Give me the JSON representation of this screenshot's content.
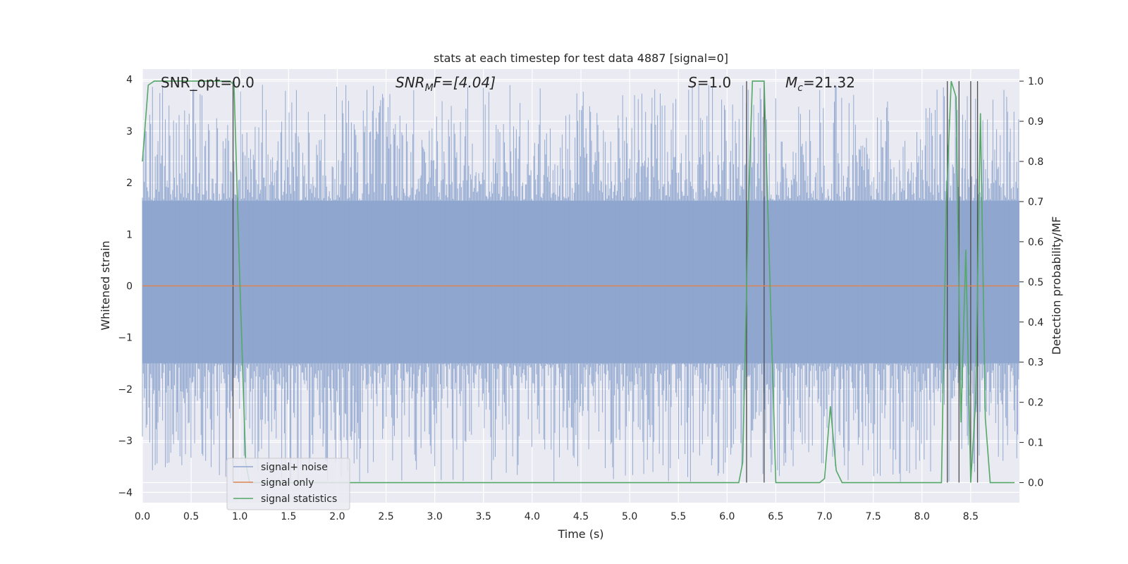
{
  "chart_data": {
    "type": "line",
    "title": "stats at each timestep for test data 4887 [signal=0]",
    "xlabel": "Time (s)",
    "ylabel": "Whitened strain",
    "ylabel_right": "Detection probability/MF",
    "xlim": [
      0.0,
      9.0
    ],
    "ylim": [
      -4.2,
      4.2
    ],
    "ylim_right": [
      -0.05,
      1.03
    ],
    "x_ticks": [
      "0.0",
      "0.5",
      "1.0",
      "1.5",
      "2.0",
      "2.5",
      "3.0",
      "3.5",
      "4.0",
      "4.5",
      "5.0",
      "5.5",
      "6.0",
      "6.5",
      "7.0",
      "7.5",
      "8.0",
      "8.5"
    ],
    "y_ticks": [
      "4",
      "3",
      "2",
      "1",
      "0",
      "−1",
      "−2",
      "−3",
      "−4"
    ],
    "y_right_ticks": [
      "1.0",
      "0.9",
      "0.8",
      "0.7",
      "0.6",
      "0.5",
      "0.4",
      "0.3",
      "0.2",
      "0.1",
      "0.0"
    ],
    "grid": true,
    "legend_position": "lower-left",
    "annotations": {
      "snr_opt": "SNR_opt=0.0",
      "snr_mf_base": "SNR",
      "snr_mf_sub": "M",
      "snr_mf_rest": "F=[4.04]",
      "s_italic": "S",
      "s_rest": "=1.0",
      "mc_base": "M",
      "mc_sub": "c",
      "mc_rest": "=21.32"
    },
    "series": [
      {
        "name": "signal+ noise",
        "color": "#8fa6cf",
        "description_role": "whitened strain noise trace",
        "amplitude_band": [
          -1.5,
          1.65
        ],
        "peak_max": 3.9,
        "peak_min": -3.8
      },
      {
        "name": "signal only",
        "color": "#dd8452",
        "x": [
          0.0,
          9.0
        ],
        "y": [
          0.0,
          0.0
        ]
      },
      {
        "name": "signal statistics",
        "color": "#55a868",
        "axis": "right",
        "x": [
          0.0,
          0.06,
          0.12,
          0.9,
          0.94,
          1.0,
          1.06,
          1.1,
          2.0,
          3.0,
          4.0,
          5.0,
          6.0,
          6.12,
          6.16,
          6.22,
          6.26,
          6.38,
          6.5,
          6.95,
          7.0,
          7.06,
          7.12,
          7.18,
          8.0,
          8.2,
          8.25,
          8.3,
          8.35,
          8.4,
          8.45,
          8.5,
          8.55,
          8.6,
          8.65,
          8.7,
          8.95
        ],
        "y": [
          0.8,
          0.99,
          1.0,
          1.0,
          0.99,
          0.5,
          0.05,
          0.0,
          0.0,
          0.0,
          0.0,
          0.0,
          0.0,
          0.0,
          0.05,
          0.7,
          1.0,
          1.0,
          0.0,
          0.0,
          0.01,
          0.19,
          0.03,
          0.0,
          0.0,
          0.0,
          0.7,
          1.0,
          0.96,
          0.15,
          0.58,
          0.0,
          0.2,
          0.92,
          0.16,
          0.0,
          0.0
        ]
      }
    ],
    "vertical_lines_x": [
      0.93,
      6.2,
      6.38,
      8.26,
      8.38,
      8.5,
      8.57
    ],
    "vertical_lines_right_range": [
      0.0,
      1.0
    ]
  }
}
